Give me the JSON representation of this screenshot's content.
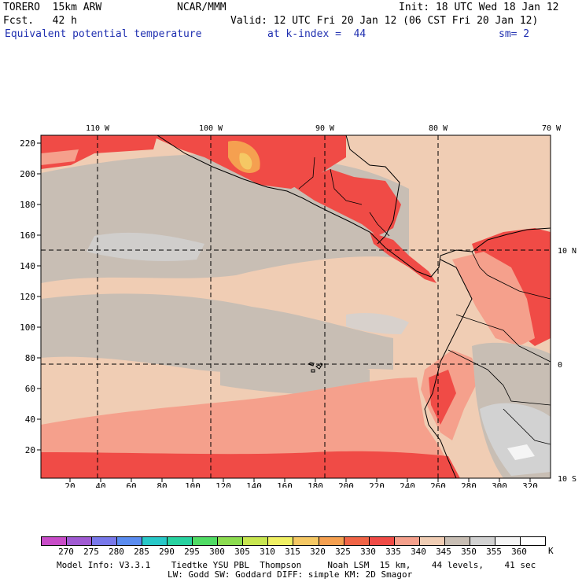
{
  "header": {
    "model": "TORERO  15km ARW",
    "org": "NCAR/MMM",
    "init": "Init: 18 UTC Wed 18 Jan 12",
    "fcst": "Fcst.   42 h",
    "valid": "Valid: 12 UTC Fri 20 Jan 12 (06 CST Fri 20 Jan 12)",
    "field": "Equivalent potential temperature",
    "level": "at k-index =  44",
    "smooth": "sm= 2"
  },
  "map": {
    "lon_labels": [
      "110 W",
      "100 W",
      "90 W",
      "80 W",
      "70 W"
    ],
    "lat_labels": [
      "10 N",
      "0",
      "10 S"
    ],
    "y_ticks": [
      "220",
      "200",
      "180",
      "160",
      "140",
      "120",
      "100",
      "80",
      "60",
      "40",
      "20"
    ],
    "x_ticks": [
      "20",
      "40",
      "60",
      "80",
      "100",
      "120",
      "140",
      "160",
      "180",
      "200",
      "220",
      "240",
      "260",
      "280",
      "300",
      "320"
    ]
  },
  "colorbar": {
    "labels": [
      "270",
      "275",
      "280",
      "285",
      "290",
      "295",
      "300",
      "305",
      "310",
      "315",
      "320",
      "325",
      "330",
      "335",
      "340",
      "345",
      "350",
      "355",
      "360"
    ],
    "unit": "K",
    "colors": [
      "#c84cc8",
      "#a05ad2",
      "#7878ea",
      "#5a8cf0",
      "#28c8c8",
      "#28d2a0",
      "#50dc64",
      "#8cdc50",
      "#c8e650",
      "#f0f064",
      "#f5c864",
      "#f5a050",
      "#f06446",
      "#f04b46",
      "#f5a08c",
      "#f0cdb4",
      "#c8beb4",
      "#d2d2d2",
      "#f5f5f5",
      "#ffffff"
    ]
  },
  "footer": {
    "line1": "Model Info: V3.3.1    Tiedtke YSU PBL  Thompson     Noah LSM  15 km,    44 levels,    41 sec",
    "line2": "LW: Godd SW: Goddard DIFF: simple KM: 2D Smagor"
  }
}
